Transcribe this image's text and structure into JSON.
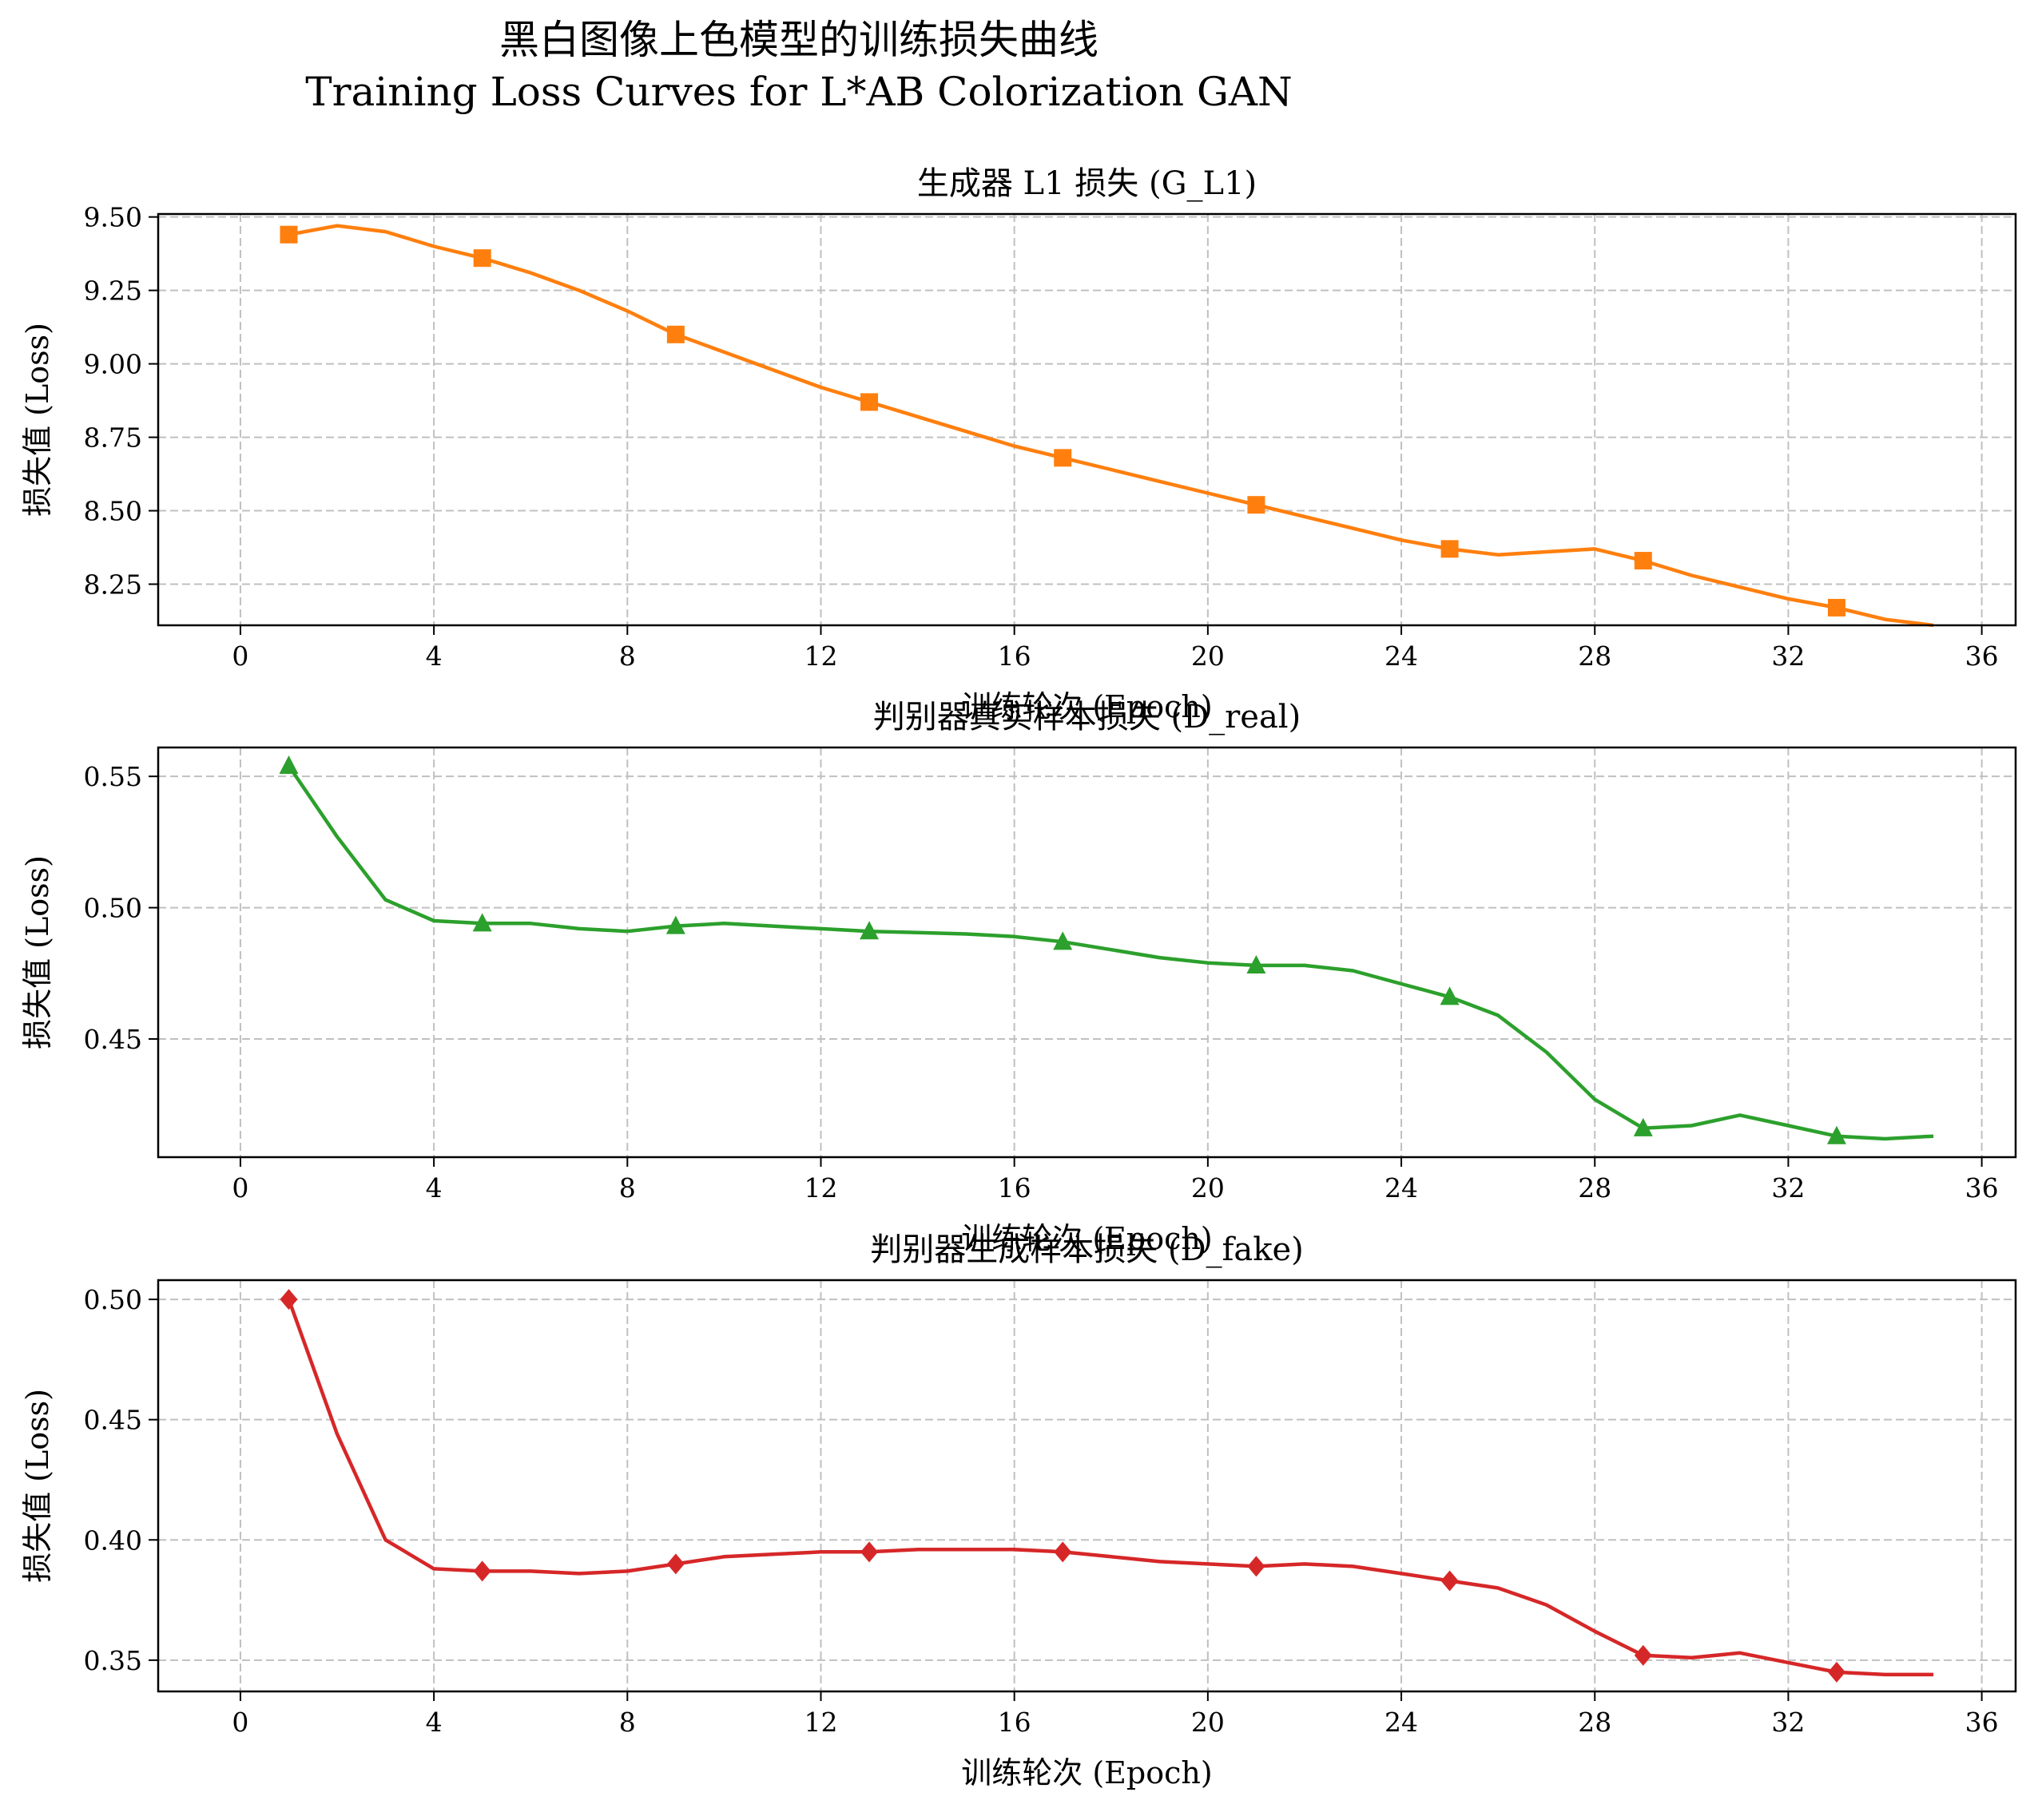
{
  "figure": {
    "title_zh": "黑白图像上色模型的训练损失曲线",
    "title_en": "Training Loss Curves for L*AB Colorization GAN"
  },
  "chart_data": [
    {
      "type": "line",
      "title": "生成器 L1 损失 (G_L1)",
      "xlabel": "训练轮次 (Epoch)",
      "ylabel": "损失值 (Loss)",
      "color": "#ff7f0e",
      "marker": "square",
      "grid": true,
      "xlim": [
        -1.7,
        36.7
      ],
      "ylim": [
        8.11,
        9.51
      ],
      "xticks": [
        0,
        4,
        8,
        12,
        16,
        20,
        24,
        28,
        32,
        36
      ],
      "yticks": [
        8.25,
        8.5,
        8.75,
        9.0,
        9.25,
        9.5
      ],
      "ytick_labels": [
        "8.25",
        "8.50",
        "8.75",
        "9.00",
        "9.25",
        "9.50"
      ],
      "x": [
        1,
        2,
        3,
        4,
        5,
        6,
        7,
        8,
        9,
        10,
        11,
        12,
        13,
        14,
        15,
        16,
        17,
        18,
        19,
        20,
        21,
        22,
        23,
        24,
        25,
        26,
        27,
        28,
        29,
        30,
        31,
        32,
        33,
        34,
        35
      ],
      "values": [
        9.44,
        9.47,
        9.45,
        9.4,
        9.36,
        9.31,
        9.25,
        9.18,
        9.1,
        9.04,
        8.98,
        8.92,
        8.87,
        8.82,
        8.77,
        8.72,
        8.68,
        8.64,
        8.6,
        8.56,
        8.52,
        8.48,
        8.44,
        8.4,
        8.37,
        8.35,
        8.36,
        8.37,
        8.33,
        8.28,
        8.24,
        8.2,
        8.17,
        8.13,
        8.11
      ],
      "marker_every": 4
    },
    {
      "type": "line",
      "title": "判别器真实样本损失 (D_real)",
      "xlabel": "训练轮次 (Epoch)",
      "ylabel": "损失值 (Loss)",
      "color": "#2ca02c",
      "marker": "triangle",
      "grid": true,
      "xlim": [
        -1.7,
        36.7
      ],
      "ylim": [
        0.405,
        0.561
      ],
      "xticks": [
        0,
        4,
        8,
        12,
        16,
        20,
        24,
        28,
        32,
        36
      ],
      "yticks": [
        0.45,
        0.5,
        0.55
      ],
      "ytick_labels": [
        "0.45",
        "0.50",
        "0.55"
      ],
      "x": [
        1,
        2,
        3,
        4,
        5,
        6,
        7,
        8,
        9,
        10,
        11,
        12,
        13,
        14,
        15,
        16,
        17,
        18,
        19,
        20,
        21,
        22,
        23,
        24,
        25,
        26,
        27,
        28,
        29,
        30,
        31,
        32,
        33,
        34,
        35
      ],
      "values": [
        0.554,
        0.527,
        0.503,
        0.495,
        0.494,
        0.494,
        0.492,
        0.491,
        0.493,
        0.494,
        0.493,
        0.492,
        0.491,
        0.4905,
        0.49,
        0.489,
        0.487,
        0.484,
        0.481,
        0.479,
        0.478,
        0.478,
        0.476,
        0.471,
        0.466,
        0.459,
        0.445,
        0.427,
        0.416,
        0.417,
        0.421,
        0.417,
        0.413,
        0.412,
        0.413
      ],
      "marker_every": 4
    },
    {
      "type": "line",
      "title": "判别器生成样本损失 (D_fake)",
      "xlabel": "训练轮次 (Epoch)",
      "ylabel": "损失值 (Loss)",
      "color": "#d62728",
      "marker": "diamond",
      "grid": true,
      "xlim": [
        -1.7,
        36.7
      ],
      "ylim": [
        0.337,
        0.508
      ],
      "xticks": [
        0,
        4,
        8,
        12,
        16,
        20,
        24,
        28,
        32,
        36
      ],
      "yticks": [
        0.35,
        0.4,
        0.45,
        0.5
      ],
      "ytick_labels": [
        "0.35",
        "0.40",
        "0.45",
        "0.50"
      ],
      "x": [
        1,
        2,
        3,
        4,
        5,
        6,
        7,
        8,
        9,
        10,
        11,
        12,
        13,
        14,
        15,
        16,
        17,
        18,
        19,
        20,
        21,
        22,
        23,
        24,
        25,
        26,
        27,
        28,
        29,
        30,
        31,
        32,
        33,
        34,
        35
      ],
      "values": [
        0.5,
        0.444,
        0.4,
        0.388,
        0.387,
        0.387,
        0.386,
        0.387,
        0.39,
        0.393,
        0.394,
        0.395,
        0.395,
        0.396,
        0.396,
        0.396,
        0.395,
        0.393,
        0.391,
        0.39,
        0.389,
        0.39,
        0.389,
        0.386,
        0.383,
        0.38,
        0.373,
        0.362,
        0.352,
        0.351,
        0.353,
        0.349,
        0.345,
        0.344,
        0.344
      ],
      "marker_every": 4
    }
  ]
}
